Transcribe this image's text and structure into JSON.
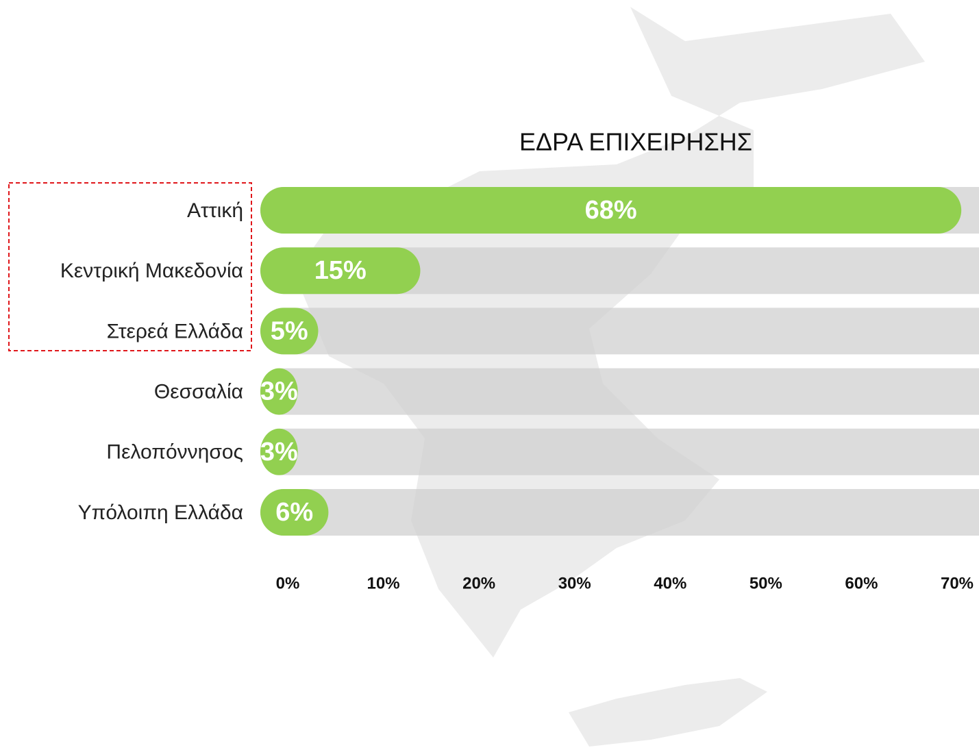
{
  "chart_data": {
    "type": "bar",
    "orientation": "horizontal",
    "title": "ΕΔΡΑ ΕΠΙΧΕΙΡΗΣΗΣ",
    "categories": [
      "Αττική",
      "Κεντρική Μακεδονία",
      "Στερεά Ελλάδα",
      "Θεσσαλία",
      "Πελοπόννησος",
      "Υπόλοιπη Ελλάδα"
    ],
    "values": [
      68,
      15,
      5,
      3,
      3,
      6
    ],
    "value_labels": [
      "68%",
      "15%",
      "5%",
      "3%",
      "3%",
      "6%"
    ],
    "color": "#92d050",
    "xlim": [
      0,
      70
    ],
    "xticks": [
      {
        "value": 0,
        "label": "0%"
      },
      {
        "value": 10,
        "label": "10%"
      },
      {
        "value": 20,
        "label": "20%"
      },
      {
        "value": 30,
        "label": "30%"
      },
      {
        "value": 40,
        "label": "40%"
      },
      {
        "value": 50,
        "label": "50%"
      },
      {
        "value": 60,
        "label": "60%"
      },
      {
        "value": 70,
        "label": "70%"
      }
    ]
  }
}
